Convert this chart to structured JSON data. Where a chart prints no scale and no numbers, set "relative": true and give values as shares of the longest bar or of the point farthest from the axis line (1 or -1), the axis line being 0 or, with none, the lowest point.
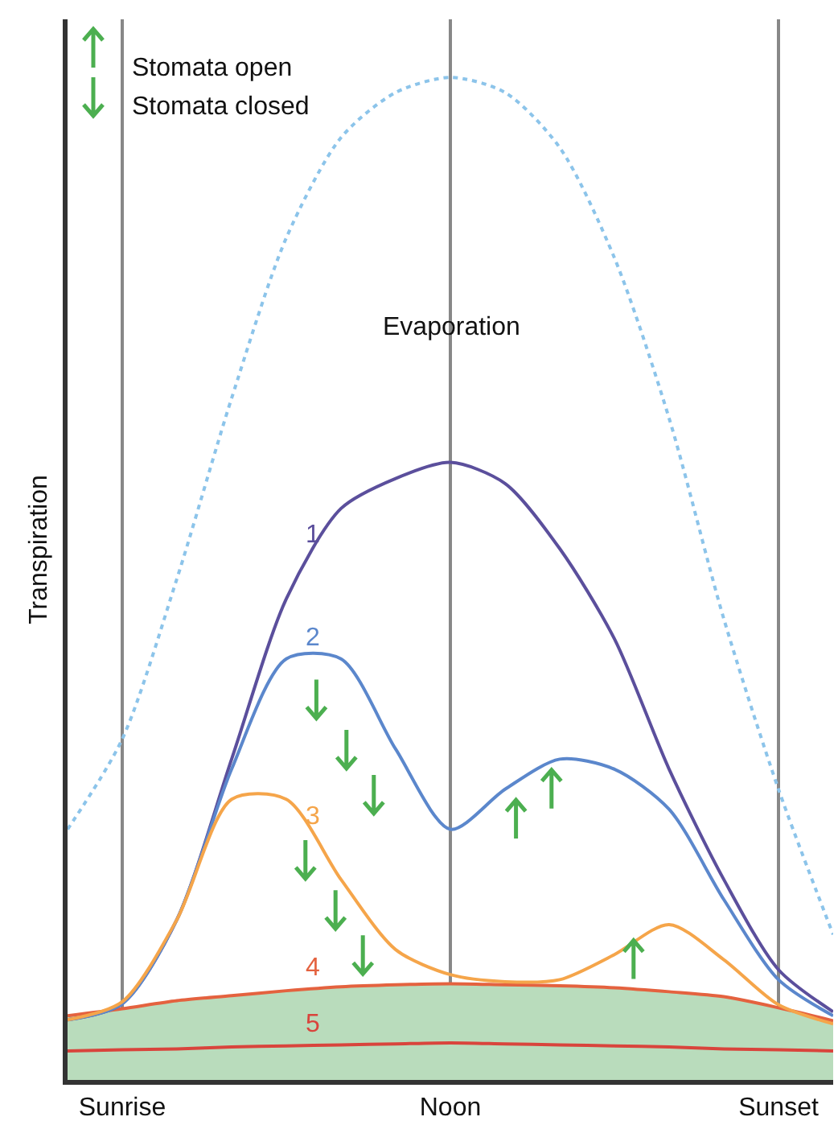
{
  "chart_data": {
    "type": "line",
    "relative": true,
    "ylabel": "Transpiration",
    "categories": [
      null,
      "Sunrise",
      null,
      null,
      null,
      null,
      null,
      "Noon",
      null,
      null,
      null,
      null,
      null,
      "Sunset",
      null
    ],
    "grid": "x",
    "legend": false,
    "marker": "none",
    "line_style": "solid",
    "annotations": [
      "Stomata open",
      "Stomata closed",
      "Evaporation"
    ],
    "series": [
      {
        "color": "#8cc4ea",
        "line_style": "dotted",
        "values": [
          0.25,
          0.34,
          0.5,
          0.68,
          0.84,
          0.94,
          0.985,
          1,
          0.985,
          0.93,
          0.82,
          0.66,
          0.46,
          0.29,
          0.145
        ]
      },
      {
        "name": "1",
        "color": "#5b4f9c",
        "values": [
          0.06,
          0.076,
          0.16,
          0.32,
          0.48,
          0.57,
          0.6,
          0.616,
          0.595,
          0.53,
          0.44,
          0.31,
          0.2,
          0.11,
          0.068
        ]
      },
      {
        "name": "2",
        "color": "#5b87cc",
        "values": [
          0.06,
          0.076,
          0.16,
          0.31,
          0.42,
          0.42,
          0.33,
          0.25,
          0.29,
          0.32,
          0.31,
          0.27,
          0.18,
          0.1,
          0.064
        ]
      },
      {
        "name": "3",
        "color": "#f5a54a",
        "values": [
          0.06,
          0.078,
          0.16,
          0.28,
          0.28,
          0.2,
          0.13,
          0.105,
          0.098,
          0.1,
          0.125,
          0.155,
          0.12,
          0.075,
          0.056
        ]
      },
      {
        "name": "4",
        "type": "area",
        "color": "#b9dcbc",
        "values": [
          0.064,
          0.071,
          0.079,
          0.084,
          0.089,
          0.093,
          0.095,
          0.096,
          0.095,
          0.094,
          0.092,
          0.088,
          0.083,
          0.072,
          0.059
        ]
      },
      {
        "name": "5",
        "color": "#d9443c",
        "values": [
          0.029,
          0.03,
          0.031,
          0.033,
          0.034,
          0.035,
          0.036,
          0.037,
          0.036,
          0.035,
          0.034,
          0.033,
          0.031,
          0.03,
          0.029
        ]
      }
    ]
  }
}
